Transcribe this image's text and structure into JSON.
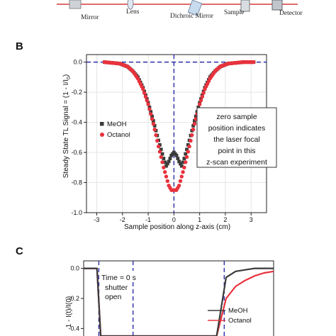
{
  "schematic": {
    "labels": [
      "Mirror",
      "Lens",
      "Dichroic Mirror",
      "Sample",
      "Detector"
    ]
  },
  "panel_b": {
    "letter": "B",
    "note_lines": [
      "zero sample",
      "position indicates",
      "the laser focal",
      "point in this",
      "z-scan experiment"
    ]
  },
  "panel_c": {
    "letter": "C",
    "note_lines": [
      "Time = 0 s",
      "shutter",
      "open"
    ]
  },
  "colors": {
    "meoh": "#3a3a3a",
    "octanol": "#e8323c",
    "dash": "#2a2fa8"
  },
  "chart_data": [
    {
      "type": "scatter",
      "xlabel": "Sample position along z-axis (cm)",
      "ylabel_prefix": "Steady State TL Signal = (1 - I/I",
      "ylabel_sub": "0",
      "ylabel_suffix": ")",
      "xlim": [
        -3.4,
        3.6
      ],
      "ylim": [
        -1.0,
        0.05
      ],
      "xticks": [
        -3,
        -2,
        -1,
        0,
        1,
        2,
        3
      ],
      "yticks": [
        0.0,
        -0.2,
        -0.4,
        -0.6,
        -0.8,
        -1.0
      ],
      "ytick_labels": [
        "0.0",
        "-0.2",
        "-0.4",
        "-0.6",
        "-0.8",
        "-1.0"
      ],
      "reference_lines": {
        "y": 0,
        "x": 0
      },
      "legend": "middle-left",
      "series": [
        {
          "name": "MeOH",
          "marker": "square",
          "x": [
            -2.7,
            -2.4,
            -2.1,
            -1.8,
            -1.6,
            -1.4,
            -1.2,
            -1.0,
            -0.8,
            -0.6,
            -0.5,
            -0.4,
            -0.3,
            -0.2,
            -0.1,
            0.0,
            0.1,
            0.2,
            0.3,
            0.4,
            0.5,
            0.6,
            0.8,
            1.0,
            1.2,
            1.4,
            1.6,
            1.8,
            2.1,
            2.4,
            2.7,
            3.1
          ],
          "y": [
            0.0,
            -0.005,
            -0.01,
            -0.03,
            -0.06,
            -0.1,
            -0.17,
            -0.27,
            -0.39,
            -0.52,
            -0.58,
            -0.64,
            -0.69,
            -0.66,
            -0.62,
            -0.6,
            -0.62,
            -0.66,
            -0.69,
            -0.64,
            -0.58,
            -0.52,
            -0.39,
            -0.27,
            -0.17,
            -0.1,
            -0.06,
            -0.03,
            -0.01,
            -0.005,
            0.0,
            0.0
          ]
        },
        {
          "name": "Octanol",
          "marker": "circle",
          "x": [
            -2.7,
            -2.4,
            -2.1,
            -1.8,
            -1.6,
            -1.4,
            -1.2,
            -1.0,
            -0.8,
            -0.6,
            -0.5,
            -0.4,
            -0.3,
            -0.2,
            -0.1,
            0.0,
            0.1,
            0.2,
            0.3,
            0.4,
            0.5,
            0.6,
            0.8,
            1.0,
            1.2,
            1.4,
            1.6,
            1.8,
            2.1,
            2.4,
            2.7,
            3.1
          ],
          "y": [
            0.0,
            -0.005,
            -0.01,
            -0.03,
            -0.06,
            -0.11,
            -0.18,
            -0.28,
            -0.41,
            -0.56,
            -0.63,
            -0.7,
            -0.76,
            -0.82,
            -0.85,
            -0.85,
            -0.85,
            -0.82,
            -0.76,
            -0.7,
            -0.63,
            -0.56,
            -0.41,
            -0.28,
            -0.18,
            -0.11,
            -0.06,
            -0.03,
            -0.01,
            -0.005,
            0.0,
            0.0
          ]
        }
      ]
    },
    {
      "type": "line",
      "ylabel": "1 - I(t)/I(0)",
      "xlim": [
        0,
        10
      ],
      "ylim": [
        -0.45,
        0.05
      ],
      "yticks": [
        0.0,
        -0.2,
        -0.4
      ],
      "ytick_labels": [
        "0.0",
        "-0.2",
        "-0.4"
      ],
      "reference_lines": {
        "x": [
          0.8,
          2.6,
          7.4
        ]
      },
      "legend": "bottom-right",
      "series": [
        {
          "name": "MeOH",
          "x": [
            0.0,
            0.7,
            0.9,
            7.0,
            7.5,
            8.0,
            8.5,
            9.0,
            9.5,
            10.0
          ],
          "y": [
            0.0,
            0.0,
            -0.45,
            -0.45,
            -0.06,
            -0.02,
            -0.01,
            0.0,
            0.0,
            0.0
          ]
        },
        {
          "name": "Octanol",
          "x": [
            0.0,
            0.7,
            0.9,
            7.0,
            7.5,
            8.0,
            8.5,
            9.0,
            9.5,
            10.0
          ],
          "y": [
            0.0,
            0.0,
            -0.45,
            -0.45,
            -0.2,
            -0.12,
            -0.08,
            -0.05,
            -0.03,
            -0.02
          ]
        }
      ]
    }
  ]
}
